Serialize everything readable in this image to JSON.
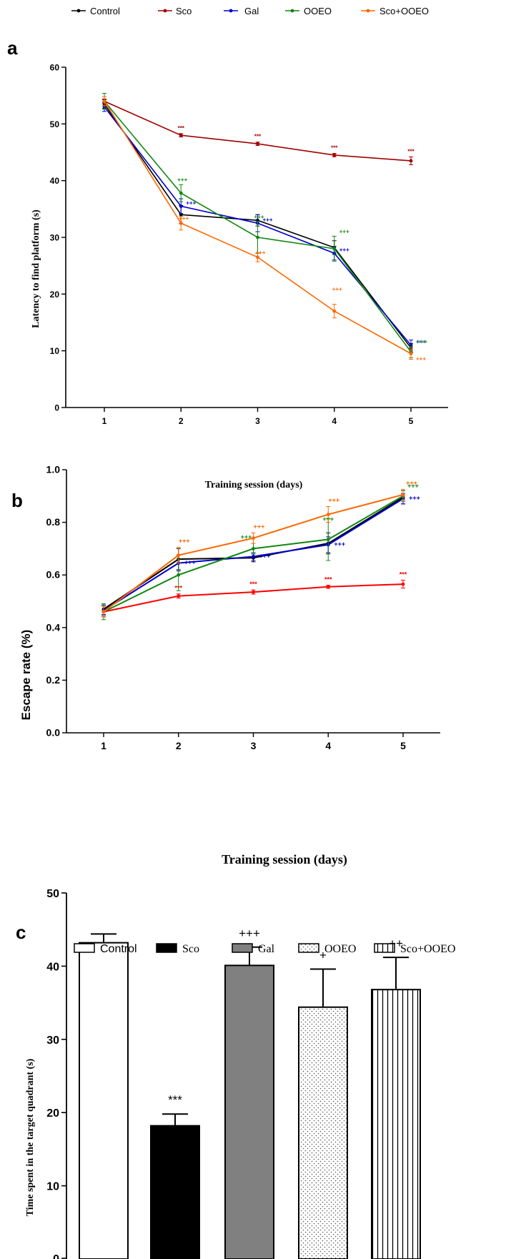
{
  "chart_data": [
    {
      "panel": "a",
      "type": "line",
      "xlabel": "Training session (days)",
      "ylabel": "Latency to find platform (s)",
      "x": [
        1,
        2,
        3,
        4,
        5
      ],
      "ylim": [
        0,
        60
      ],
      "yticks": [
        0,
        10,
        20,
        30,
        40,
        50,
        60
      ],
      "legend_position": "top",
      "series": [
        {
          "name": "Control",
          "color": "#000000",
          "values": [
            53.5,
            34.0,
            33.0,
            28.2,
            10.5
          ],
          "errors": [
            0.8,
            1.6,
            1.0,
            1.2,
            0.8
          ],
          "annotations": [
            "",
            "",
            "",
            "",
            ""
          ]
        },
        {
          "name": "Sco",
          "color": "#a00000",
          "values": [
            54.0,
            48.0,
            46.5,
            44.5,
            43.5
          ],
          "errors": [
            0.4,
            0.3,
            0.3,
            0.3,
            0.7
          ],
          "annotations": [
            "",
            "***",
            "***",
            "***",
            "***"
          ]
        },
        {
          "name": "Gal",
          "color": "#0000cc",
          "values": [
            53.0,
            35.5,
            32.5,
            27.2,
            11.0
          ],
          "errors": [
            0.8,
            1.3,
            1.5,
            1.2,
            0.9
          ],
          "annotations": [
            "",
            "+++",
            "+++",
            "+++",
            "+++"
          ]
        },
        {
          "name": "OOEO",
          "color": "#118811",
          "values": [
            54.0,
            37.8,
            30.0,
            28.0,
            9.8
          ],
          "errors": [
            1.4,
            1.5,
            2.8,
            2.2,
            1.0
          ],
          "annotations": [
            "",
            "+++",
            "+++",
            "+++",
            "+++"
          ]
        },
        {
          "name": "Sco+OOEO",
          "color": "#ff6600",
          "values": [
            54.0,
            32.5,
            26.5,
            17.0,
            9.5
          ],
          "errors": [
            0.8,
            1.2,
            0.8,
            1.2,
            1.0
          ],
          "annotations": [
            "",
            "+++",
            "+++",
            "+++",
            "+++"
          ]
        }
      ]
    },
    {
      "panel": "b",
      "type": "line",
      "xlabel": "Training session (days)",
      "ylabel": "Escape rate (%)",
      "x": [
        1,
        2,
        3,
        4,
        5
      ],
      "ylim": [
        0,
        1.0
      ],
      "yticks": [
        "0.0",
        "0.2",
        "0.4",
        "0.6",
        "0.8",
        "1.0"
      ],
      "series": [
        {
          "name": "Control",
          "color": "#000000",
          "values": [
            0.47,
            0.66,
            0.665,
            0.72,
            0.895
          ],
          "errors": [
            0.02,
            0.04,
            0.015,
            0.04,
            0.025
          ]
        },
        {
          "name": "Sco",
          "color": "#ff0000",
          "values": [
            0.46,
            0.52,
            0.535,
            0.555,
            0.565
          ],
          "errors": [
            0.02,
            0.008,
            0.008,
            0.006,
            0.015
          ],
          "annotations": [
            "",
            "***",
            "***",
            "***",
            "***"
          ]
        },
        {
          "name": "Gal",
          "color": "#0000cc",
          "values": [
            0.465,
            0.645,
            0.67,
            0.715,
            0.89
          ],
          "errors": [
            0.02,
            0.03,
            0.015,
            0.03,
            0.02
          ],
          "annotations": [
            "",
            "+++",
            "+++",
            "+++",
            "+++"
          ]
        },
        {
          "name": "OOEO",
          "color": "#118811",
          "values": [
            0.46,
            0.6,
            0.7,
            0.735,
            0.9
          ],
          "errors": [
            0.03,
            0.06,
            0.02,
            0.08,
            0.02
          ],
          "annotations": [
            "",
            "",
            "+++",
            "+++",
            "+++"
          ]
        },
        {
          "name": "Sco+OOEO",
          "color": "#ff6600",
          "values": [
            0.46,
            0.675,
            0.74,
            0.83,
            0.905
          ],
          "errors": [
            0.02,
            0.03,
            0.02,
            0.03,
            0.02
          ],
          "annotations": [
            "",
            "+++",
            "+++",
            "+++",
            "+++"
          ]
        }
      ]
    },
    {
      "panel": "c",
      "type": "bar",
      "ylabel": "Time spent in the target quadrant (s)",
      "ylim": [
        0,
        50
      ],
      "yticks": [
        0,
        10,
        20,
        30,
        40,
        50
      ],
      "categories": [
        "Control",
        "Sco",
        "Gal",
        "OOEO",
        "Sco+OOEO"
      ],
      "values": [
        43.2,
        18.2,
        40.1,
        34.4,
        36.8
      ],
      "errors": [
        1.2,
        1.6,
        2.5,
        5.2,
        4.4
      ],
      "annotations": [
        "",
        "***",
        "+++",
        "+",
        "++"
      ],
      "fills": [
        "white",
        "black",
        "gray",
        "dots",
        "vertical-lines"
      ]
    }
  ],
  "panel_labels": {
    "a": "a",
    "b": "b",
    "c": "c"
  }
}
